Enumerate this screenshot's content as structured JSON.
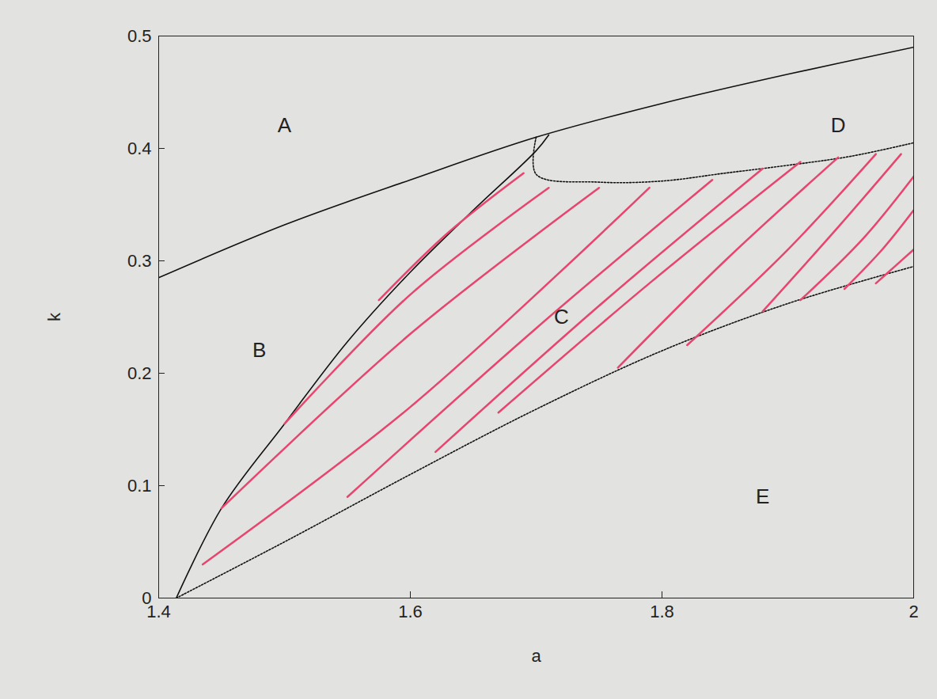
{
  "chart_data": {
    "type": "line",
    "x_label": "a",
    "y_label": "k",
    "xlim": [
      1.4,
      2
    ],
    "ylim": [
      0,
      0.5
    ],
    "xticks": [
      1.4,
      1.6,
      1.8,
      2
    ],
    "yticks": [
      0,
      0.1,
      0.2,
      0.3,
      0.4,
      0.5
    ],
    "grid": false,
    "series": [
      {
        "color": "#111111",
        "line_style": "solid",
        "x": [
          1.4,
          1.5,
          1.6,
          1.7,
          1.8,
          1.9,
          2.0
        ],
        "values": [
          0.285,
          0.332,
          0.372,
          0.41,
          0.44,
          0.466,
          0.49
        ]
      },
      {
        "color": "#111111",
        "line_style": "solid",
        "x": [
          1.414,
          1.45,
          1.5,
          1.55,
          1.6,
          1.65,
          1.7,
          1.71
        ],
        "values": [
          0.0,
          0.08,
          0.155,
          0.228,
          0.29,
          0.345,
          0.398,
          0.412
        ]
      },
      {
        "color": "#111111",
        "line_style": "dotted",
        "x": [
          1.7,
          1.7,
          1.75,
          1.8,
          1.85,
          1.9,
          1.95,
          2.0
        ],
        "values": [
          0.41,
          0.377,
          0.37,
          0.371,
          0.378,
          0.385,
          0.393,
          0.405
        ]
      },
      {
        "color": "#111111",
        "line_style": "dotted",
        "x": [
          1.414,
          1.5,
          1.6,
          1.7,
          1.8,
          1.9,
          2.0
        ],
        "values": [
          0.0,
          0.05,
          0.11,
          0.168,
          0.22,
          0.262,
          0.295
        ]
      },
      {
        "color": "#e8456e",
        "line_style": "solid",
        "x": [
          1.575,
          1.63,
          1.69
        ],
        "values": [
          0.265,
          0.325,
          0.378
        ]
      },
      {
        "color": "#e8456e",
        "line_style": "solid",
        "x": [
          1.5,
          1.6,
          1.71
        ],
        "values": [
          0.155,
          0.27,
          0.365
        ]
      },
      {
        "color": "#e8456e",
        "line_style": "solid",
        "x": [
          1.45,
          1.6,
          1.75
        ],
        "values": [
          0.08,
          0.235,
          0.365
        ]
      },
      {
        "color": "#e8456e",
        "line_style": "solid",
        "x": [
          1.435,
          1.6,
          1.79
        ],
        "values": [
          0.03,
          0.17,
          0.365
        ]
      },
      {
        "color": "#e8456e",
        "line_style": "solid",
        "x": [
          1.55,
          1.7,
          1.84
        ],
        "values": [
          0.09,
          0.24,
          0.372
        ]
      },
      {
        "color": "#e8456e",
        "line_style": "solid",
        "x": [
          1.62,
          1.75,
          1.88
        ],
        "values": [
          0.13,
          0.26,
          0.382
        ]
      },
      {
        "color": "#e8456e",
        "line_style": "solid",
        "x": [
          1.67,
          1.79,
          1.91
        ],
        "values": [
          0.165,
          0.28,
          0.388
        ]
      },
      {
        "color": "#e8456e",
        "line_style": "solid",
        "x": [
          1.765,
          1.85,
          1.94
        ],
        "values": [
          0.205,
          0.3,
          0.392
        ]
      },
      {
        "color": "#e8456e",
        "line_style": "solid",
        "x": [
          1.82,
          1.9,
          1.97
        ],
        "values": [
          0.225,
          0.31,
          0.395
        ]
      },
      {
        "color": "#e8456e",
        "line_style": "solid",
        "x": [
          1.88,
          1.94,
          1.99
        ],
        "values": [
          0.255,
          0.33,
          0.395
        ]
      },
      {
        "color": "#e8456e",
        "line_style": "solid",
        "x": [
          1.91,
          1.96,
          2.0
        ],
        "values": [
          0.265,
          0.32,
          0.375
        ]
      },
      {
        "color": "#e8456e",
        "line_style": "solid",
        "x": [
          1.945,
          1.975,
          2.0
        ],
        "values": [
          0.275,
          0.31,
          0.345
        ]
      },
      {
        "color": "#e8456e",
        "line_style": "solid",
        "x": [
          1.97,
          1.985,
          2.0
        ],
        "values": [
          0.28,
          0.295,
          0.31
        ]
      }
    ],
    "annotations": [
      {
        "text": "A",
        "x": 1.5,
        "y": 0.42
      },
      {
        "text": "B",
        "x": 1.48,
        "y": 0.22
      },
      {
        "text": "C",
        "x": 1.72,
        "y": 0.25
      },
      {
        "text": "D",
        "x": 1.94,
        "y": 0.42
      },
      {
        "text": "E",
        "x": 1.88,
        "y": 0.09
      }
    ]
  }
}
